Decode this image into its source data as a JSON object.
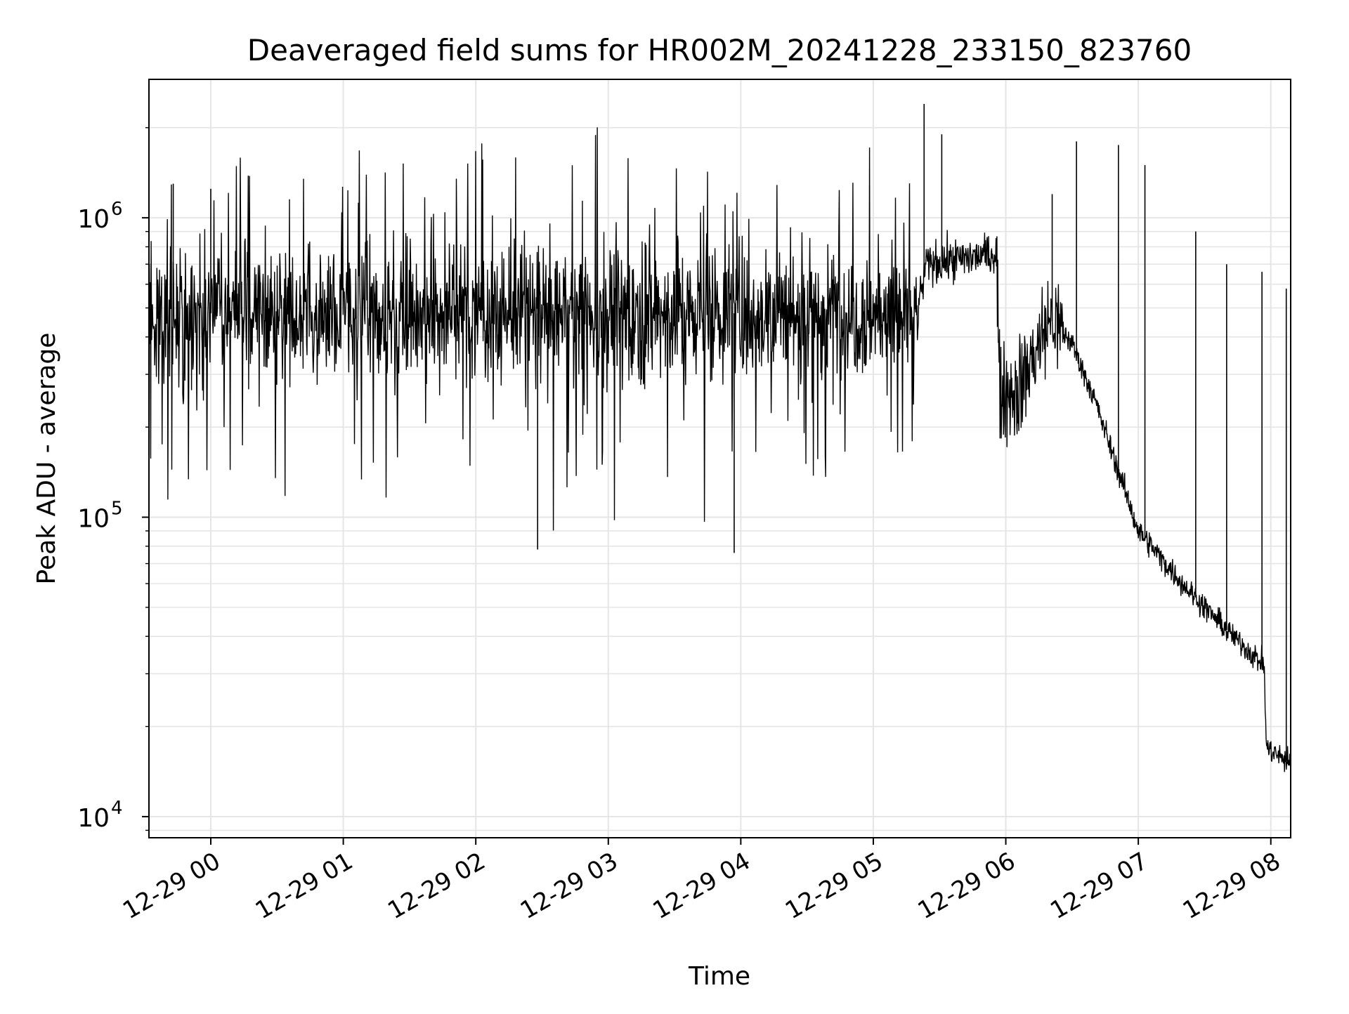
{
  "chart_data": {
    "type": "line",
    "title": "Deaveraged field sums for HR002M_20241228_233150_823760",
    "xlabel": "Time",
    "ylabel": "Peak ADU - average",
    "y_scale": "log",
    "ylim": [
      8500,
      2900000
    ],
    "xlim": [
      "2024-12-28 23:32",
      "2024-12-29 08:09"
    ],
    "grid": true,
    "line_color": "#000000",
    "grid_color": "#e5e5e5",
    "x_ticks": [
      {
        "value": "2024-12-29 00:00",
        "label": "12-29 00"
      },
      {
        "value": "2024-12-29 01:00",
        "label": "12-29 01"
      },
      {
        "value": "2024-12-29 02:00",
        "label": "12-29 02"
      },
      {
        "value": "2024-12-29 03:00",
        "label": "12-29 03"
      },
      {
        "value": "2024-12-29 04:00",
        "label": "12-29 04"
      },
      {
        "value": "2024-12-29 05:00",
        "label": "12-29 05"
      },
      {
        "value": "2024-12-29 06:00",
        "label": "12-29 06"
      },
      {
        "value": "2024-12-29 07:00",
        "label": "12-29 07"
      },
      {
        "value": "2024-12-29 08:00",
        "label": "12-29 08"
      }
    ],
    "y_ticks": [
      {
        "value": 10000,
        "base": "10",
        "exp": "4"
      },
      {
        "value": 100000,
        "base": "10",
        "exp": "5"
      },
      {
        "value": 1000000,
        "base": "10",
        "exp": "6"
      }
    ],
    "series": [
      {
        "style": "noisy",
        "segments": [
          {
            "x": "2024-12-28 23:32",
            "y": 480000
          },
          {
            "x": "2024-12-29 05:20",
            "y": 480000
          },
          {
            "x": "2024-12-29 05:24",
            "y": 700000
          },
          {
            "x": "2024-12-29 05:56",
            "y": 760000
          },
          {
            "x": "2024-12-29 05:57",
            "y": 270000
          },
          {
            "x": "2024-12-29 06:05",
            "y": 260000
          },
          {
            "x": "2024-12-29 06:15",
            "y": 380000
          },
          {
            "x": "2024-12-29 06:20",
            "y": 460000
          },
          {
            "x": "2024-12-29 06:30",
            "y": 380000
          },
          {
            "x": "2024-12-29 06:40",
            "y": 250000
          },
          {
            "x": "2024-12-29 07:00",
            "y": 90000
          },
          {
            "x": "2024-12-29 07:20",
            "y": 60000
          },
          {
            "x": "2024-12-29 07:40",
            "y": 42000
          },
          {
            "x": "2024-12-29 07:57",
            "y": 32000
          },
          {
            "x": "2024-12-29 07:58",
            "y": 17000
          },
          {
            "x": "2024-12-29 08:09",
            "y": 15000
          }
        ],
        "spikes": [
          {
            "x": "2024-12-29 05:23",
            "y": 2400000
          },
          {
            "x": "2024-12-29 05:31",
            "y": 1900000
          },
          {
            "x": "2024-12-29 06:32",
            "y": 1800000
          },
          {
            "x": "2024-12-29 06:51",
            "y": 1750000
          },
          {
            "x": "2024-12-29 07:03",
            "y": 1500000
          },
          {
            "x": "2024-12-29 06:21",
            "y": 1200000
          },
          {
            "x": "2024-12-29 07:26",
            "y": 900000
          },
          {
            "x": "2024-12-29 07:40",
            "y": 700000
          },
          {
            "x": "2024-12-29 07:56",
            "y": 660000
          },
          {
            "x": "2024-12-29 08:07",
            "y": 580000
          },
          {
            "x": "2024-12-28 23:43",
            "y": 1300000
          },
          {
            "x": "2024-12-29 00:00",
            "y": 1250000
          },
          {
            "x": "2024-12-29 02:28",
            "y": 78000
          },
          {
            "x": "2024-12-29 03:57",
            "y": 76000
          }
        ]
      }
    ]
  }
}
